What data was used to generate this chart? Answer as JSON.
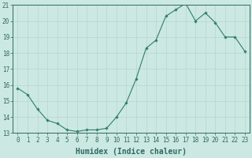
{
  "x": [
    0,
    1,
    2,
    3,
    4,
    5,
    6,
    7,
    8,
    9,
    10,
    11,
    12,
    13,
    14,
    15,
    16,
    17,
    18,
    19,
    20,
    21,
    22,
    23
  ],
  "y": [
    15.8,
    15.4,
    14.5,
    13.8,
    13.6,
    13.2,
    13.1,
    13.2,
    13.2,
    13.3,
    14.0,
    14.9,
    16.4,
    18.3,
    18.8,
    20.3,
    20.7,
    21.1,
    20.0,
    20.5,
    19.9,
    19.0,
    19.0,
    18.1
  ],
  "xlabel": "Humidex (Indice chaleur)",
  "ylim": [
    13,
    21
  ],
  "xlim_min": -0.5,
  "xlim_max": 23.5,
  "yticks": [
    13,
    14,
    15,
    16,
    17,
    18,
    19,
    20,
    21
  ],
  "xticks": [
    0,
    1,
    2,
    3,
    4,
    5,
    6,
    7,
    8,
    9,
    10,
    11,
    12,
    13,
    14,
    15,
    16,
    17,
    18,
    19,
    20,
    21,
    22,
    23
  ],
  "line_color": "#2e7d6e",
  "marker": "D",
  "marker_size": 1.8,
  "bg_color": "#cce8e3",
  "grid_color": "#b8d4cf",
  "axis_color": "#2e6b5e",
  "label_fontsize": 6.5,
  "tick_fontsize": 5.5,
  "xlabel_fontsize": 7.0
}
